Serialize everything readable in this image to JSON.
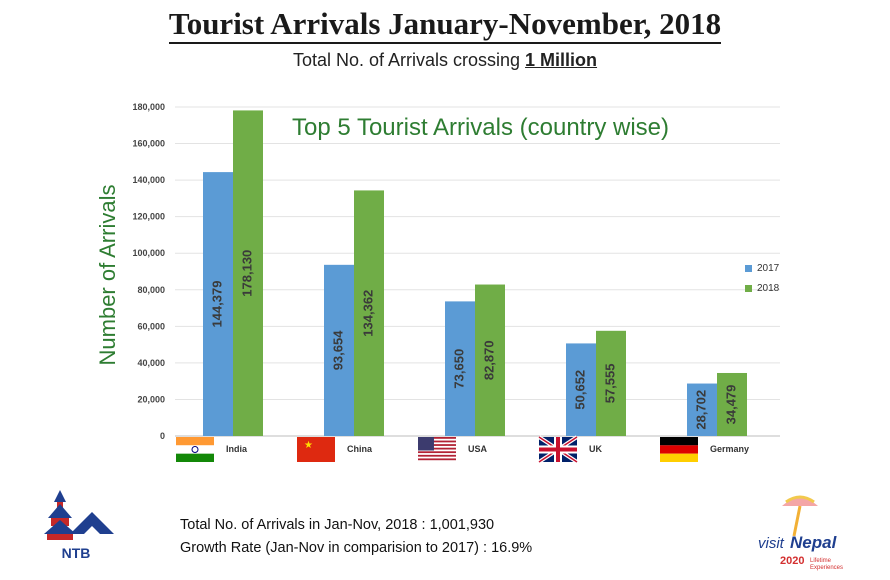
{
  "header": {
    "title": "Tourist Arrivals January-November, 2018",
    "subtitle_prefix": "Total No. of Arrivals crossing ",
    "subtitle_highlight": "1 Million"
  },
  "chart_data": {
    "type": "bar",
    "title": "Top 5 Tourist Arrivals (country wise)",
    "ylabel": "Number of Arrivals",
    "xlabel": "",
    "categories": [
      "India",
      "China",
      "USA",
      "UK",
      "Germany"
    ],
    "series": [
      {
        "name": "2017",
        "values": [
          144379,
          93654,
          73650,
          50652,
          28702
        ],
        "labels": [
          "144,379",
          "93,654",
          "73,650",
          "50,652",
          "28,702"
        ]
      },
      {
        "name": "2018",
        "values": [
          178130,
          134362,
          82870,
          57555,
          34479
        ],
        "labels": [
          "178,130",
          "134,362",
          "82,870",
          "57,555",
          "34,479"
        ]
      }
    ],
    "ylim": [
      0,
      180000
    ],
    "yticks": [
      0,
      20000,
      40000,
      60000,
      80000,
      100000,
      120000,
      140000,
      160000,
      180000
    ],
    "ytick_labels": [
      "0",
      "20,000",
      "40,000",
      "60,000",
      "80,000",
      "100,000",
      "120,000",
      "140,000",
      "160,000",
      "180,000"
    ],
    "grid": true,
    "legend_position": "right",
    "colors": {
      "2017": "#5b9bd5",
      "2018": "#70ad47"
    }
  },
  "footer": {
    "line1": "Total No. of Arrivals in Jan-Nov, 2018 : 1,001,930",
    "line2": "Growth Rate (Jan-Nov in comparision to 2017) : 16.9%"
  },
  "logos": {
    "ntb_text": "NTB",
    "visit_nepal_text": "visit Nepal",
    "visit_nepal_year": "2020",
    "visit_nepal_tagline": "Lifetime Experiences"
  },
  "icons": [
    "flag-india-icon",
    "flag-china-icon",
    "flag-usa-icon",
    "flag-uk-icon",
    "flag-germany-icon"
  ]
}
